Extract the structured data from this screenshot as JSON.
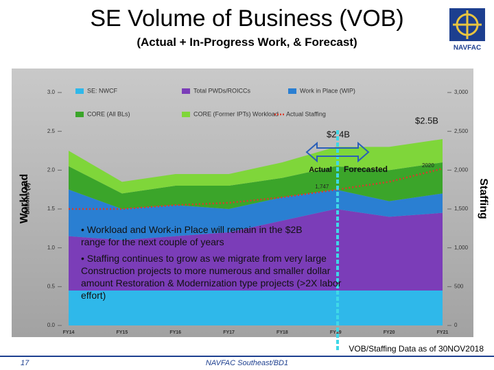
{
  "slide": {
    "title": "SE Volume of Business (VOB)",
    "subtitle": "(Actual + In-Progress Work, & Forecast)",
    "logo": "NAVFAC",
    "left_label": "Workload",
    "right_label": "Staffing",
    "bullets": [
      "Workload and Work-in Place will remain in the $2B range for the next couple of years",
      "Staffing continues to grow as we migrate from very large Construction projects to more numerous and smaller dollar amount Restoration & Modernization type projects (>2X labor effort)"
    ],
    "source": "VOB/Staffing Data as of 30NOV2018",
    "page": "17",
    "footer": "NAVFAC Southeast/BD1"
  },
  "chart_data": {
    "type": "stacked_area",
    "ylabel": "Billions ($)",
    "categories": [
      "FY14",
      "FY15",
      "FY16",
      "FY17",
      "FY18",
      "FY19",
      "FY20",
      "FY21"
    ],
    "series": [
      {
        "name": "SE: NWCF",
        "color": "#2fb8ea",
        "values": [
          0.45,
          0.45,
          0.45,
          0.45,
          0.45,
          0.45,
          0.45,
          0.45
        ]
      },
      {
        "name": "Total PWDs/ROICCs",
        "color": "#7b3db8",
        "values": [
          0.7,
          0.65,
          0.7,
          0.75,
          0.9,
          1.05,
          0.95,
          1.0
        ]
      },
      {
        "name": "Work in Place (WIP)",
        "color": "#2a7fd2",
        "values": [
          0.6,
          0.4,
          0.4,
          0.3,
          0.3,
          0.25,
          0.2,
          0.25
        ]
      },
      {
        "name": "CORE (All BLs)",
        "color": "#3ba52a",
        "values": [
          0.3,
          0.2,
          0.25,
          0.3,
          0.25,
          0.3,
          0.4,
          0.4
        ]
      },
      {
        "name": "CORE (Former IPTs) Workload",
        "color": "#7fd63a",
        "values": [
          0.2,
          0.15,
          0.15,
          0.15,
          0.2,
          0.25,
          0.3,
          0.3
        ]
      },
      {
        "name": "Actual Staffing",
        "color": "#d93b2b",
        "type": "line",
        "axis": "y2",
        "values": [
          1500,
          1500,
          1550,
          1580,
          1650,
          1747,
          1850,
          2020
        ],
        "value_labels": [
          null,
          null,
          null,
          null,
          null,
          "1,747",
          null,
          "2020"
        ]
      }
    ],
    "ylim": [
      0,
      3
    ],
    "yticks": [
      {
        "value": 0,
        "label": "0.0"
      },
      0.5,
      {
        "value": 1,
        "label": "1.0"
      },
      1.5,
      {
        "value": 2,
        "label": "2.0"
      },
      2.5,
      {
        "value": 3,
        "label": "3.0"
      }
    ],
    "y2lim": [
      0,
      3000
    ],
    "y2ticks": [
      0,
      500,
      {
        "value": 1000,
        "label": "1,000"
      },
      {
        "value": 1500,
        "label": "1,500"
      },
      {
        "value": 2000,
        "label": "2,000"
      },
      {
        "value": 2500,
        "label": "2,500"
      },
      {
        "value": 3000,
        "label": "3,000"
      }
    ],
    "annotations": [
      "$2.5B",
      "$2.4B",
      "Actual",
      "Forecasted"
    ]
  }
}
